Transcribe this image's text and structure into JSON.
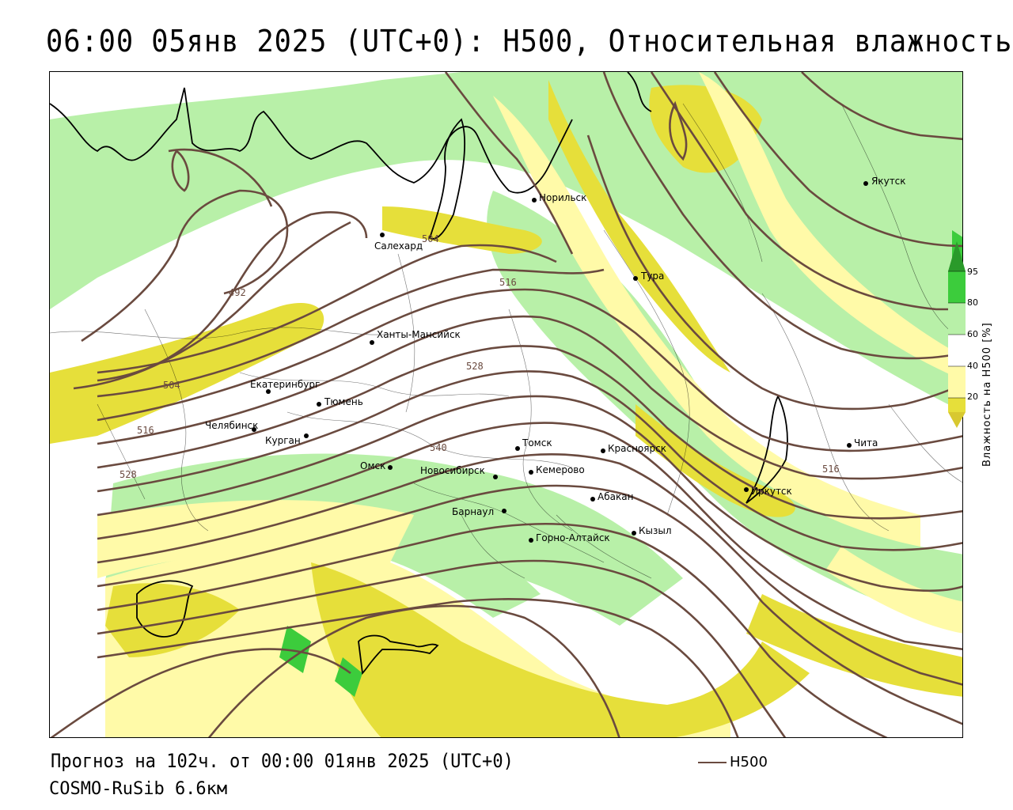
{
  "header": {
    "title": "06:00 05янв 2025 (UTC+0): H500, Относительная влажность"
  },
  "footer": {
    "forecast": "Прогноз на 102ч. от 00:00 01янв 2025 (UTC+0)",
    "model": "COSMO-RuSib 6.6км",
    "legend_label": "H500"
  },
  "colors": {
    "isoline": "#6a4a3f",
    "humidity_high": "#3ccc3c",
    "humidity_mid": "#b8f0a8",
    "humidity_low": "#e6df3a",
    "humidity_lowest": "#fffaa8",
    "border": "#000000"
  },
  "colorbar": {
    "title": "Влажность на H500 [%]",
    "ticks": [
      "95",
      "80",
      "60",
      "40",
      "20"
    ]
  },
  "cities": [
    {
      "name": "Салехард"
    },
    {
      "name": "Норильск"
    },
    {
      "name": "Якутск"
    },
    {
      "name": "Тура"
    },
    {
      "name": "Ханты-Мансийск"
    },
    {
      "name": "Екатеринбург"
    },
    {
      "name": "Тюмень"
    },
    {
      "name": "Челябинск"
    },
    {
      "name": "Курган"
    },
    {
      "name": "Омск"
    },
    {
      "name": "Новосибирск"
    },
    {
      "name": "Томск"
    },
    {
      "name": "Кемерово"
    },
    {
      "name": "Красноярск"
    },
    {
      "name": "Барнаул"
    },
    {
      "name": "Абакан"
    },
    {
      "name": "Горно-Алтайск"
    },
    {
      "name": "Кызыл"
    },
    {
      "name": "Иркутск"
    },
    {
      "name": "Чита"
    }
  ],
  "isoline_labels": [
    "492",
    "504",
    "504",
    "516",
    "516",
    "516",
    "528",
    "528",
    "540"
  ]
}
